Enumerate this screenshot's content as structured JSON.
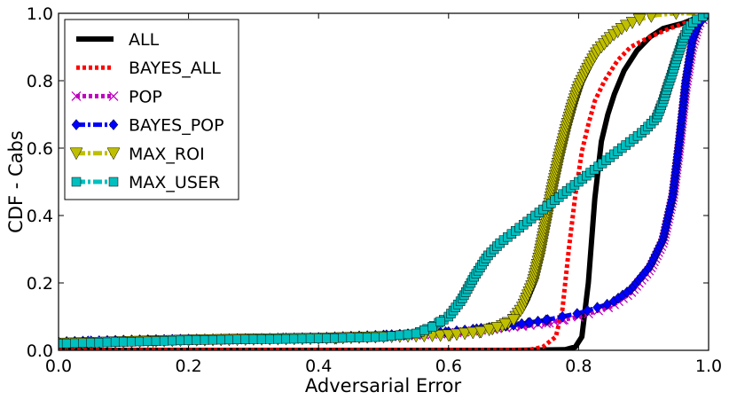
{
  "chart_data": {
    "type": "line",
    "title": "",
    "xlabel": "Adversarial Error",
    "ylabel": "CDF - Cabs",
    "xlim": [
      0.0,
      1.0
    ],
    "ylim": [
      0.0,
      1.0
    ],
    "xticks": [
      "0.0",
      "0.2",
      "0.4",
      "0.6",
      "0.8",
      "1.0"
    ],
    "yticks": [
      "0.0",
      "0.2",
      "0.4",
      "0.6",
      "0.8",
      "1.0"
    ],
    "grid": false,
    "legend_position": "top-left",
    "series": [
      {
        "name": "ALL",
        "color": "#000000",
        "style": "solid",
        "marker": "none",
        "points": [
          [
            0.0,
            0.0
          ],
          [
            0.7,
            0.0
          ],
          [
            0.78,
            0.002
          ],
          [
            0.795,
            0.01
          ],
          [
            0.805,
            0.04
          ],
          [
            0.815,
            0.2
          ],
          [
            0.825,
            0.45
          ],
          [
            0.835,
            0.62
          ],
          [
            0.845,
            0.7
          ],
          [
            0.855,
            0.76
          ],
          [
            0.87,
            0.83
          ],
          [
            0.89,
            0.89
          ],
          [
            0.91,
            0.93
          ],
          [
            0.93,
            0.955
          ],
          [
            0.96,
            0.97
          ],
          [
            0.98,
            0.985
          ],
          [
            1.0,
            1.0
          ]
        ]
      },
      {
        "name": "BAYES_ALL",
        "color": "#ff0000",
        "style": "dotted",
        "marker": "none",
        "points": [
          [
            0.0,
            0.0
          ],
          [
            0.72,
            0.0
          ],
          [
            0.745,
            0.01
          ],
          [
            0.765,
            0.04
          ],
          [
            0.775,
            0.12
          ],
          [
            0.785,
            0.3
          ],
          [
            0.795,
            0.46
          ],
          [
            0.805,
            0.59
          ],
          [
            0.815,
            0.67
          ],
          [
            0.825,
            0.74
          ],
          [
            0.84,
            0.8
          ],
          [
            0.86,
            0.86
          ],
          [
            0.88,
            0.9
          ],
          [
            0.91,
            0.93
          ],
          [
            0.94,
            0.955
          ],
          [
            0.97,
            0.975
          ],
          [
            1.0,
            1.0
          ]
        ]
      },
      {
        "name": "POP",
        "color": "#bf00bf",
        "style": "dotted",
        "marker": "x",
        "points": [
          [
            0.0,
            0.02
          ],
          [
            0.1,
            0.025
          ],
          [
            0.2,
            0.03
          ],
          [
            0.3,
            0.032
          ],
          [
            0.4,
            0.035
          ],
          [
            0.5,
            0.04
          ],
          [
            0.6,
            0.05
          ],
          [
            0.7,
            0.07
          ],
          [
            0.75,
            0.08
          ],
          [
            0.8,
            0.1
          ],
          [
            0.85,
            0.13
          ],
          [
            0.88,
            0.17
          ],
          [
            0.91,
            0.24
          ],
          [
            0.93,
            0.32
          ],
          [
            0.945,
            0.45
          ],
          [
            0.955,
            0.6
          ],
          [
            0.965,
            0.78
          ],
          [
            0.975,
            0.9
          ],
          [
            0.985,
            0.97
          ],
          [
            1.0,
            1.0
          ]
        ]
      },
      {
        "name": "BAYES_POP",
        "color": "#0000ff",
        "style": "dashdot",
        "marker": "diamond",
        "points": [
          [
            0.0,
            0.025
          ],
          [
            0.1,
            0.03
          ],
          [
            0.2,
            0.033
          ],
          [
            0.3,
            0.035
          ],
          [
            0.4,
            0.038
          ],
          [
            0.5,
            0.045
          ],
          [
            0.6,
            0.055
          ],
          [
            0.7,
            0.075
          ],
          [
            0.75,
            0.09
          ],
          [
            0.8,
            0.11
          ],
          [
            0.85,
            0.14
          ],
          [
            0.88,
            0.18
          ],
          [
            0.91,
            0.25
          ],
          [
            0.93,
            0.33
          ],
          [
            0.945,
            0.46
          ],
          [
            0.955,
            0.62
          ],
          [
            0.965,
            0.8
          ],
          [
            0.975,
            0.92
          ],
          [
            0.985,
            0.97
          ],
          [
            1.0,
            1.0
          ]
        ]
      },
      {
        "name": "MAX_ROI",
        "color": "#bfbf00",
        "style": "dashdot",
        "marker": "triangle-down",
        "points": [
          [
            0.0,
            0.02
          ],
          [
            0.1,
            0.025
          ],
          [
            0.2,
            0.03
          ],
          [
            0.3,
            0.033
          ],
          [
            0.4,
            0.035
          ],
          [
            0.5,
            0.04
          ],
          [
            0.6,
            0.045
          ],
          [
            0.65,
            0.055
          ],
          [
            0.68,
            0.07
          ],
          [
            0.7,
            0.09
          ],
          [
            0.715,
            0.13
          ],
          [
            0.73,
            0.2
          ],
          [
            0.74,
            0.28
          ],
          [
            0.75,
            0.38
          ],
          [
            0.76,
            0.48
          ],
          [
            0.77,
            0.57
          ],
          [
            0.78,
            0.65
          ],
          [
            0.79,
            0.72
          ],
          [
            0.8,
            0.78
          ],
          [
            0.815,
            0.84
          ],
          [
            0.83,
            0.89
          ],
          [
            0.85,
            0.93
          ],
          [
            0.87,
            0.96
          ],
          [
            0.89,
            0.98
          ],
          [
            0.92,
            0.995
          ],
          [
            0.95,
            1.0
          ],
          [
            1.0,
            1.0
          ]
        ]
      },
      {
        "name": "MAX_USER",
        "color": "#00bfbf",
        "style": "dashdot",
        "marker": "square",
        "points": [
          [
            0.0,
            0.02
          ],
          [
            0.1,
            0.025
          ],
          [
            0.2,
            0.03
          ],
          [
            0.3,
            0.033
          ],
          [
            0.4,
            0.035
          ],
          [
            0.5,
            0.04
          ],
          [
            0.55,
            0.05
          ],
          [
            0.575,
            0.07
          ],
          [
            0.6,
            0.1
          ],
          [
            0.62,
            0.15
          ],
          [
            0.64,
            0.22
          ],
          [
            0.66,
            0.28
          ],
          [
            0.68,
            0.32
          ],
          [
            0.7,
            0.35
          ],
          [
            0.72,
            0.38
          ],
          [
            0.74,
            0.41
          ],
          [
            0.76,
            0.44
          ],
          [
            0.78,
            0.47
          ],
          [
            0.8,
            0.5
          ],
          [
            0.82,
            0.53
          ],
          [
            0.84,
            0.56
          ],
          [
            0.86,
            0.59
          ],
          [
            0.88,
            0.62
          ],
          [
            0.9,
            0.65
          ],
          [
            0.92,
            0.69
          ],
          [
            0.93,
            0.74
          ],
          [
            0.94,
            0.8
          ],
          [
            0.95,
            0.86
          ],
          [
            0.96,
            0.92
          ],
          [
            0.97,
            0.96
          ],
          [
            0.98,
            0.98
          ],
          [
            1.0,
            1.0
          ]
        ]
      }
    ]
  }
}
